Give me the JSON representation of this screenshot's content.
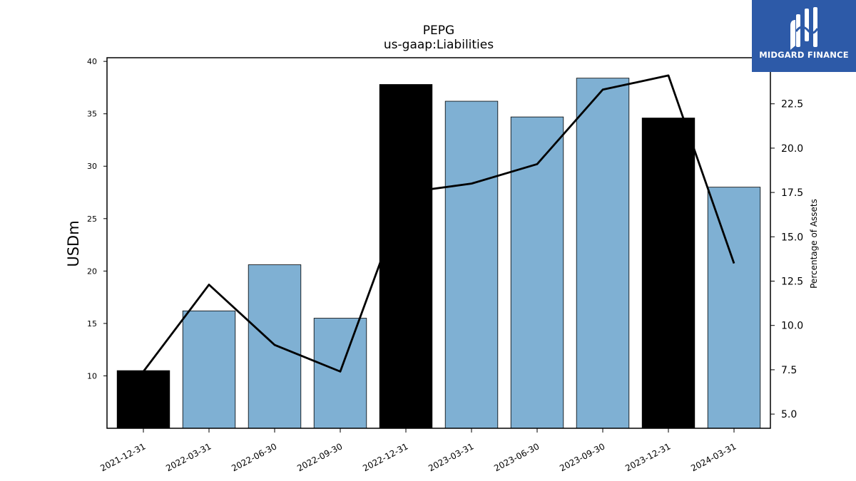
{
  "logo": {
    "text": "MIDGARD FINANCE",
    "background": "#2d5aa8"
  },
  "chart_data": {
    "type": "bar",
    "title": "PEPG",
    "subtitle": "us-gaap:Liabilities",
    "ylabel": "USDm",
    "ylabel_right": "Percentage of Assets",
    "categories": [
      "2021-12-31",
      "2022-03-31",
      "2022-06-30",
      "2022-09-30",
      "2022-12-31",
      "2023-03-31",
      "2023-06-30",
      "2023-09-30",
      "2023-12-31",
      "2024-03-31"
    ],
    "series": [
      {
        "type": "bar",
        "axis": "left",
        "values": [
          10.5,
          16.2,
          20.6,
          15.5,
          37.8,
          36.2,
          34.7,
          38.4,
          34.6,
          28.0
        ],
        "colors": [
          "#000000",
          "#7fb0d3",
          "#7fb0d3",
          "#7fb0d3",
          "#000000",
          "#7fb0d3",
          "#7fb0d3",
          "#7fb0d3",
          "#000000",
          "#7fb0d3"
        ]
      },
      {
        "type": "line",
        "axis": "right",
        "color": "#000000",
        "values": [
          7.4,
          12.3,
          8.9,
          7.4,
          17.5,
          18.0,
          19.1,
          23.3,
          24.1,
          13.5
        ]
      }
    ],
    "ylim": [
      5,
      40.35
    ],
    "ylim_right": [
      4.2,
      25.1
    ],
    "yticks": [
      10,
      15,
      20,
      25,
      30,
      35,
      40
    ],
    "yticks_right": [
      5.0,
      7.5,
      10.0,
      12.5,
      15.0,
      17.5,
      20.0,
      22.5
    ],
    "ytick_labels_right": [
      "5.0",
      "7.5",
      "10.0",
      "12.5",
      "15.0",
      "17.5",
      "20.0",
      "22.5"
    ],
    "grid": false,
    "legend": "none"
  }
}
